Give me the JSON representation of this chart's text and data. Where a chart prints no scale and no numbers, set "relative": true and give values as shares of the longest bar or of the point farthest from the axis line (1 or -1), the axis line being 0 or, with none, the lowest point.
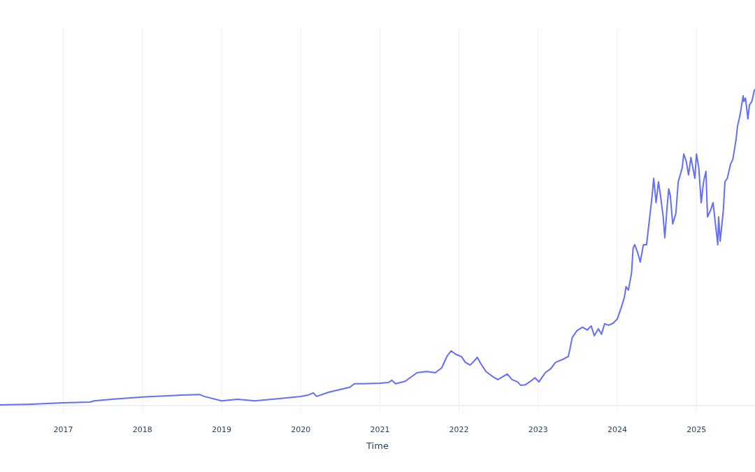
{
  "chart_data": {
    "type": "line",
    "xlabel": "Time",
    "relative": true,
    "grid": "x",
    "color": "#636efa",
    "xlim": [
      2016.2,
      2025.74
    ],
    "xticks": [
      2017,
      2018,
      2019,
      2020,
      2021,
      2022,
      2023,
      2024,
      2025
    ],
    "x": [
      2016.2,
      2016.55,
      2017,
      2017.34,
      2017.39,
      2017.61,
      2018,
      2018.32,
      2018.49,
      2018.72,
      2018.78,
      2019,
      2019.2,
      2019.42,
      2019.73,
      2020,
      2020.09,
      2020.16,
      2020.2,
      2020.35,
      2020.62,
      2020.68,
      2020.79,
      2021,
      2021.11,
      2021.15,
      2021.2,
      2021.32,
      2021.47,
      2021.59,
      2021.7,
      2021.78,
      2021.85,
      2021.9,
      2021.96,
      2022.03,
      2022.08,
      2022.14,
      2022.21,
      2022.23,
      2022.27,
      2022.34,
      2022.43,
      2022.49,
      2022.61,
      2022.67,
      2022.74,
      2022.78,
      2022.84,
      2022.92,
      2022.96,
      2023.01,
      2023.09,
      2023.16,
      2023.22,
      2023.31,
      2023.38,
      2023.4,
      2023.43,
      2023.49,
      2023.56,
      2023.62,
      2023.67,
      2023.71,
      2023.76,
      2023.8,
      2023.84,
      2023.89,
      2023.95,
      2024,
      2024.05,
      2024.09,
      2024.11,
      2024.14,
      2024.18,
      2024.2,
      2024.22,
      2024.26,
      2024.29,
      2024.33,
      2024.37,
      2024.42,
      2024.44,
      2024.46,
      2024.49,
      2024.52,
      2024.54,
      2024.58,
      2024.6,
      2024.63,
      2024.65,
      2024.67,
      2024.7,
      2024.74,
      2024.77,
      2024.82,
      2024.84,
      2024.87,
      2024.9,
      2024.93,
      2024.98,
      2025,
      2025.03,
      2025.06,
      2025.09,
      2025.12,
      2025.14,
      2025.18,
      2025.21,
      2025.25,
      2025.27,
      2025.28,
      2025.3,
      2025.34,
      2025.36,
      2025.39,
      2025.43,
      2025.46,
      2025.5,
      2025.52,
      2025.55,
      2025.59,
      2025.6,
      2025.62,
      2025.65,
      2025.67,
      2025.7,
      2025.73,
      2025.74
    ],
    "values": [
      0.002,
      0.004,
      0.009,
      0.011,
      0.015,
      0.02,
      0.027,
      0.031,
      0.033,
      0.035,
      0.029,
      0.015,
      0.02,
      0.015,
      0.022,
      0.029,
      0.033,
      0.04,
      0.029,
      0.042,
      0.058,
      0.069,
      0.069,
      0.071,
      0.073,
      0.08,
      0.069,
      0.077,
      0.104,
      0.108,
      0.104,
      0.119,
      0.157,
      0.173,
      0.162,
      0.155,
      0.137,
      0.128,
      0.146,
      0.153,
      0.135,
      0.108,
      0.091,
      0.082,
      0.1,
      0.082,
      0.075,
      0.064,
      0.066,
      0.08,
      0.088,
      0.075,
      0.104,
      0.117,
      0.137,
      0.146,
      0.155,
      0.177,
      0.215,
      0.237,
      0.248,
      0.239,
      0.252,
      0.221,
      0.243,
      0.226,
      0.259,
      0.254,
      0.261,
      0.274,
      0.31,
      0.343,
      0.376,
      0.365,
      0.42,
      0.498,
      0.509,
      0.482,
      0.454,
      0.509,
      0.509,
      0.619,
      0.664,
      0.719,
      0.642,
      0.708,
      0.675,
      0.597,
      0.531,
      0.631,
      0.686,
      0.664,
      0.575,
      0.608,
      0.708,
      0.752,
      0.796,
      0.774,
      0.73,
      0.785,
      0.719,
      0.796,
      0.752,
      0.642,
      0.708,
      0.741,
      0.597,
      0.619,
      0.642,
      0.553,
      0.509,
      0.597,
      0.52,
      0.619,
      0.708,
      0.719,
      0.763,
      0.779,
      0.841,
      0.885,
      0.918,
      0.98,
      0.962,
      0.973,
      0.907,
      0.951,
      0.962,
      0.996,
      1
    ]
  }
}
